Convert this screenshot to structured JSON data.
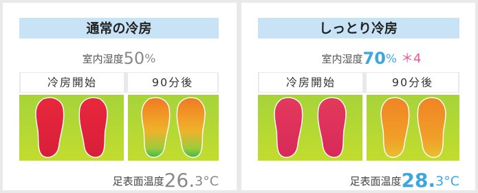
{
  "panels": [
    {
      "title": "通常の冷房",
      "humidity_label": "室内湿度",
      "humidity_value": "50",
      "humidity_unit": "%",
      "images": [
        {
          "label": "冷房開始"
        },
        {
          "label": "90分後"
        }
      ],
      "temp_label": "足表面温度",
      "temp_value": "26.",
      "temp_rest": "3°C"
    },
    {
      "title": "しっとり冷房",
      "humidity_label": "室内湿度",
      "humidity_value": "70",
      "humidity_unit": "%",
      "note": "＊4",
      "images": [
        {
          "label": "冷房開始"
        },
        {
          "label": "90分後"
        }
      ],
      "temp_label": "足表面温度",
      "temp_value": "28.",
      "temp_rest": "3°C"
    }
  ]
}
